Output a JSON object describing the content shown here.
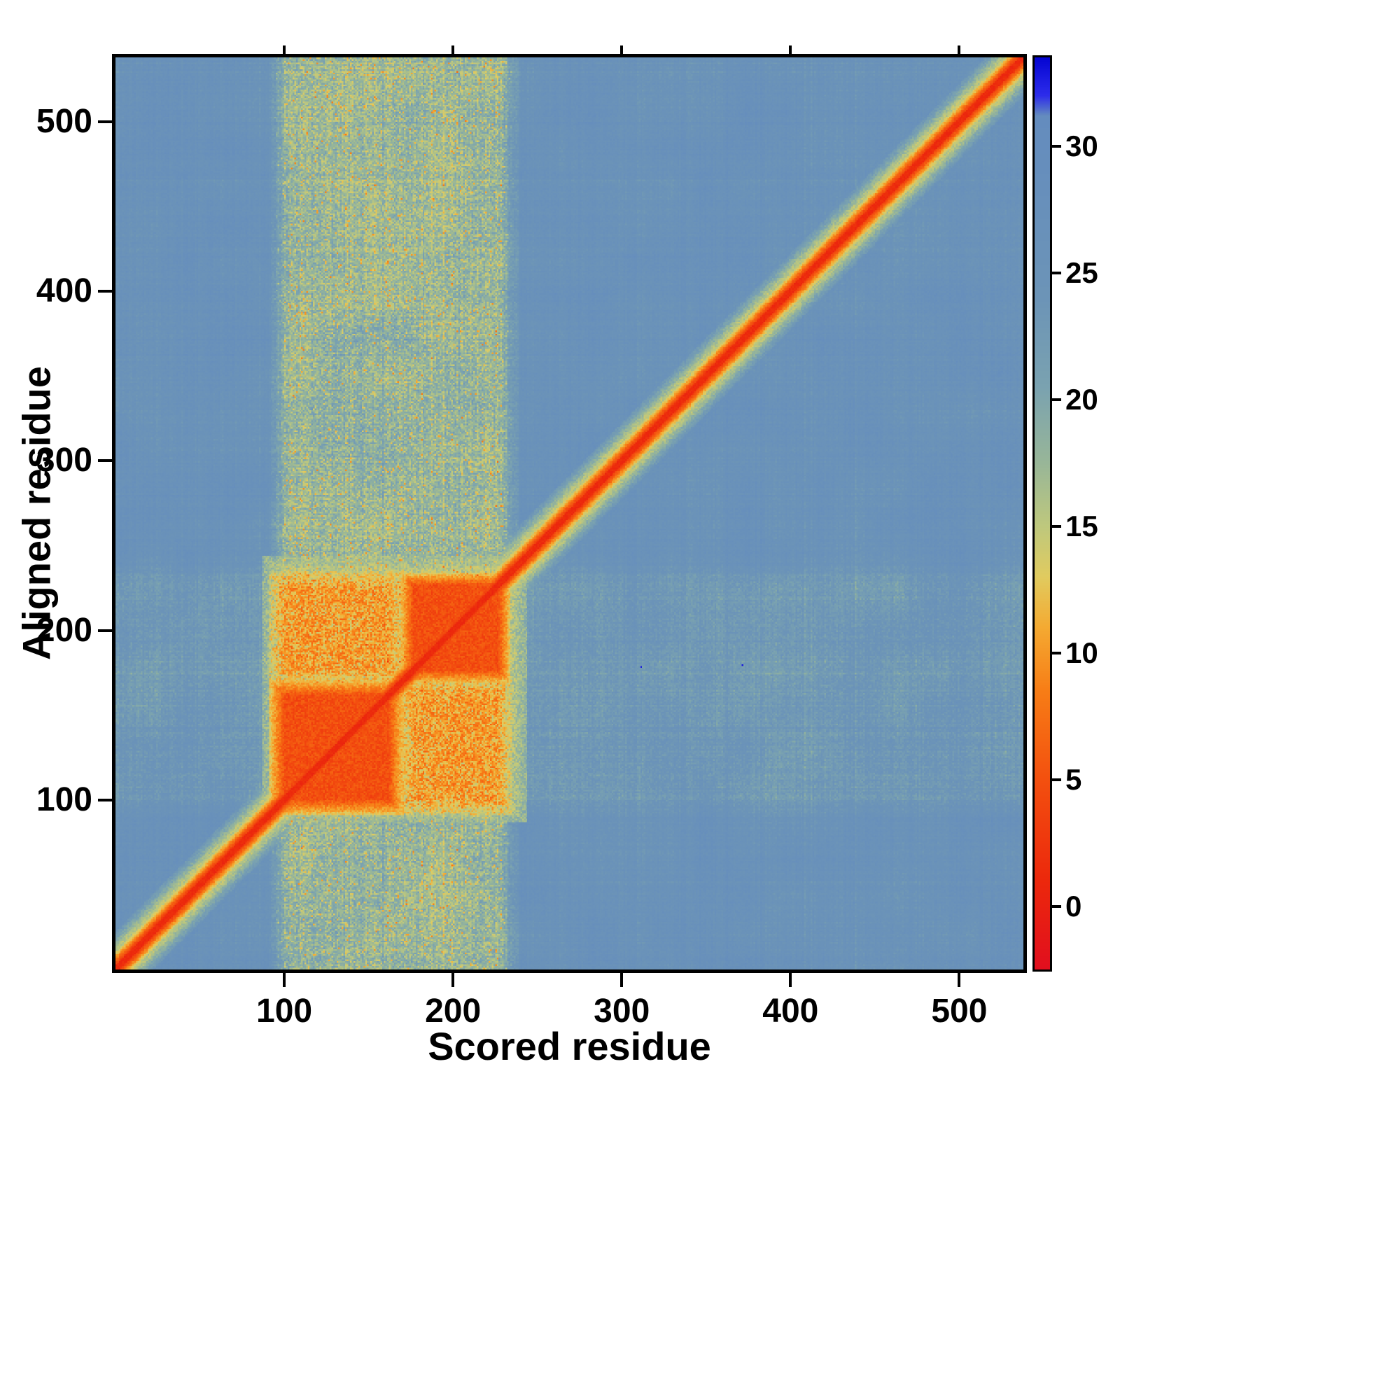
{
  "chart_data": {
    "type": "heatmap",
    "title": "",
    "xlabel": "Scored residue",
    "ylabel": "Aligned residue",
    "n_residues": 538,
    "x_range": [
      1,
      538
    ],
    "y_range": [
      1,
      538
    ],
    "x_ticks": [
      100,
      200,
      300,
      400,
      500
    ],
    "y_ticks": [
      100,
      200,
      300,
      400,
      500
    ],
    "grid": false,
    "colorbar": {
      "position": "right",
      "tick_values": [
        0,
        5,
        10,
        15,
        20,
        25,
        30
      ],
      "vmin": -2.5,
      "vmax": 33.5
    },
    "colormap_stops": [
      [
        -2.5,
        225,
        15,
        30
      ],
      [
        1.0,
        236,
        40,
        12
      ],
      [
        5.0,
        243,
        80,
        15
      ],
      [
        8.5,
        247,
        125,
        22
      ],
      [
        11.0,
        244,
        170,
        50
      ],
      [
        13.0,
        225,
        203,
        95
      ],
      [
        15.0,
        190,
        200,
        125
      ],
      [
        17.5,
        152,
        182,
        152
      ],
      [
        20.5,
        122,
        162,
        176
      ],
      [
        24.0,
        108,
        148,
        183
      ],
      [
        31.2,
        100,
        140,
        190
      ],
      [
        32.0,
        45,
        45,
        235
      ],
      [
        33.5,
        5,
        5,
        210
      ]
    ],
    "structure": {
      "seed": 20240613,
      "background_value": 26,
      "diagonal_value": 1,
      "diagonal_halfwidth": 2,
      "domain_block_a": [
        96,
        167
      ],
      "domain_block_b": [
        173,
        231
      ],
      "block_value": 4,
      "cross_block_value": 10,
      "domain_band_range": [
        96,
        235
      ],
      "halo_range": [
        92,
        240
      ],
      "halo_value": 14,
      "blue_specks": [
        [
          312,
          179
        ],
        [
          372,
          180
        ]
      ]
    }
  }
}
